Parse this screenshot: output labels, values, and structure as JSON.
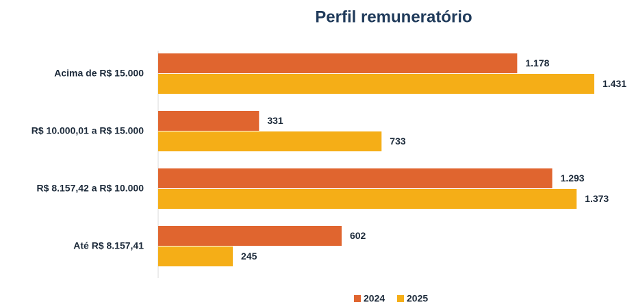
{
  "chart_data": {
    "type": "hbar",
    "title": "Perfil remuneratório",
    "categories": [
      "Acima de R$ 15.000",
      "R$ 10.000,01 a R$ 15.000",
      "R$ 8.157,42 a R$ 10.000",
      "Até R$ 8.157,41"
    ],
    "series": [
      {
        "name": "2024",
        "color": "#e0652f",
        "values": [
          1178,
          331,
          1293,
          602
        ],
        "value_labels": [
          "1.178",
          "331",
          "1.293",
          "602"
        ]
      },
      {
        "name": "2025",
        "color": "#f5ae17",
        "values": [
          1431,
          733,
          1373,
          245
        ],
        "value_labels": [
          "1.431",
          "733",
          "1.373",
          "245"
        ]
      }
    ],
    "legend": "bottom"
  }
}
